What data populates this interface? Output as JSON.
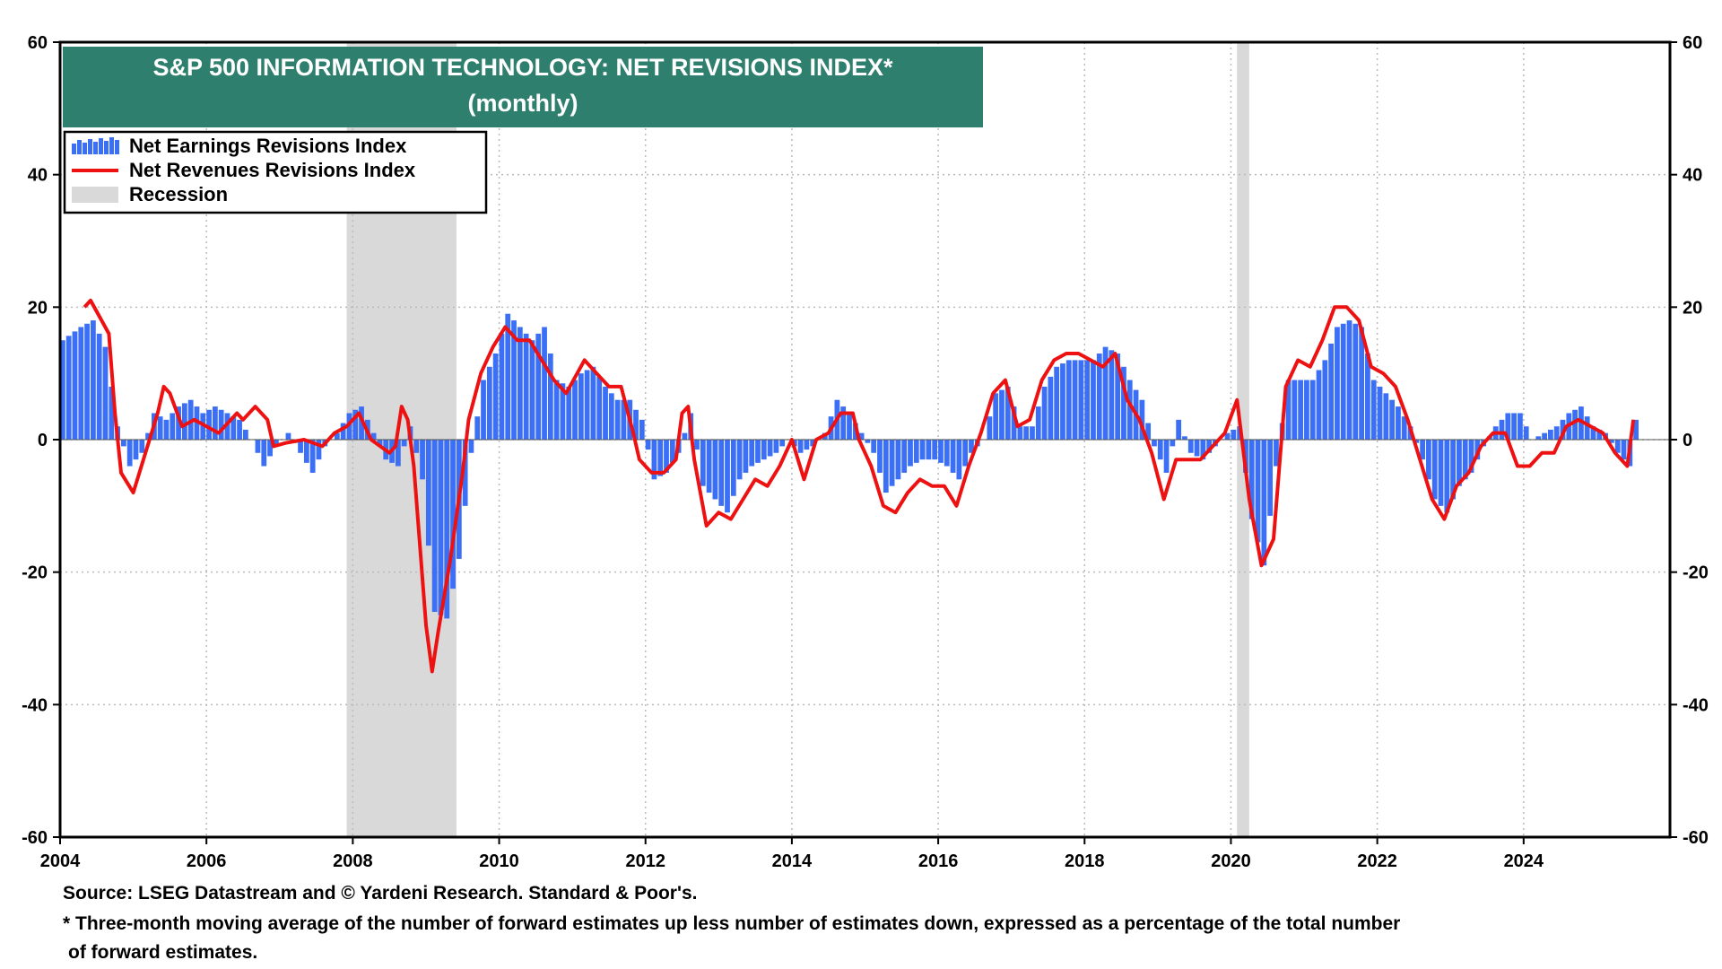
{
  "chart_data": {
    "type": "bar",
    "title": "S&P 500 INFORMATION TECHNOLOGY: NET REVISIONS INDEX*",
    "subtitle": "(monthly)",
    "ylim": [
      -60,
      60
    ],
    "y_ticks": [
      "60",
      "40",
      "20",
      "0",
      "-20",
      "-40",
      "-60"
    ],
    "x_ticks": [
      "2004",
      "2006",
      "2008",
      "2010",
      "2012",
      "2014",
      "2016",
      "2018",
      "2020",
      "2022",
      "2024"
    ],
    "xlim": [
      2004.0,
      2026.0
    ],
    "grid": true,
    "legend_position": "top-left",
    "legend": [
      {
        "label": "Net Earnings Revisions Index",
        "kind": "bar"
      },
      {
        "label": "Net Revenues Revisions Index",
        "kind": "line"
      },
      {
        "label": "Recession",
        "kind": "band"
      }
    ],
    "recessions": [
      {
        "start": "2007-12",
        "end": "2009-06"
      },
      {
        "start": "2020-02",
        "end": "2020-04"
      }
    ],
    "series": [
      {
        "name": "Net Earnings Revisions Index",
        "kind": "bar",
        "color": "#3b6ff5",
        "points": [
          [
            "2004-01",
            15
          ],
          [
            "2004-04",
            17
          ],
          [
            "2004-06",
            18
          ],
          [
            "2004-08",
            14
          ],
          [
            "2004-10",
            2
          ],
          [
            "2004-12",
            -4
          ],
          [
            "2005-02",
            -2
          ],
          [
            "2005-04",
            4
          ],
          [
            "2005-06",
            3
          ],
          [
            "2005-08",
            5
          ],
          [
            "2005-10",
            6
          ],
          [
            "2005-12",
            4
          ],
          [
            "2006-02",
            5
          ],
          [
            "2006-04",
            4
          ],
          [
            "2006-06",
            3
          ],
          [
            "2006-08",
            0
          ],
          [
            "2006-10",
            -4
          ],
          [
            "2006-12",
            -1
          ],
          [
            "2007-02",
            1
          ],
          [
            "2007-04",
            -2
          ],
          [
            "2007-06",
            -5
          ],
          [
            "2007-08",
            -1
          ],
          [
            "2007-10",
            1
          ],
          [
            "2007-12",
            4
          ],
          [
            "2008-02",
            5
          ],
          [
            "2008-04",
            1
          ],
          [
            "2008-06",
            -3
          ],
          [
            "2008-08",
            -4
          ],
          [
            "2008-10",
            2
          ],
          [
            "2008-12",
            -6
          ],
          [
            "2009-02",
            -26
          ],
          [
            "2009-04",
            -27
          ],
          [
            "2009-06",
            -18
          ],
          [
            "2009-08",
            -2
          ],
          [
            "2009-10",
            9
          ],
          [
            "2009-12",
            13
          ],
          [
            "2010-02",
            19
          ],
          [
            "2010-04",
            17
          ],
          [
            "2010-06",
            15
          ],
          [
            "2010-08",
            17
          ],
          [
            "2010-10",
            9
          ],
          [
            "2010-12",
            8
          ],
          [
            "2011-02",
            10
          ],
          [
            "2011-04",
            11
          ],
          [
            "2011-06",
            8
          ],
          [
            "2011-08",
            6
          ],
          [
            "2011-10",
            6
          ],
          [
            "2011-12",
            3
          ],
          [
            "2012-02",
            -6
          ],
          [
            "2012-04",
            -5
          ],
          [
            "2012-06",
            -2
          ],
          [
            "2012-08",
            4
          ],
          [
            "2012-10",
            -7
          ],
          [
            "2012-12",
            -9
          ],
          [
            "2013-02",
            -11
          ],
          [
            "2013-04",
            -6
          ],
          [
            "2013-06",
            -4
          ],
          [
            "2013-08",
            -3
          ],
          [
            "2013-10",
            -2
          ],
          [
            "2013-12",
            0
          ],
          [
            "2014-02",
            -2
          ],
          [
            "2014-04",
            -1
          ],
          [
            "2014-06",
            1
          ],
          [
            "2014-08",
            6
          ],
          [
            "2014-10",
            4
          ],
          [
            "2014-12",
            1
          ],
          [
            "2015-02",
            -2
          ],
          [
            "2015-04",
            -8
          ],
          [
            "2015-06",
            -6
          ],
          [
            "2015-08",
            -4
          ],
          [
            "2015-10",
            -3
          ],
          [
            "2015-12",
            -3
          ],
          [
            "2016-02",
            -4
          ],
          [
            "2016-04",
            -6
          ],
          [
            "2016-06",
            -2
          ],
          [
            "2016-08",
            0
          ],
          [
            "2016-10",
            7
          ],
          [
            "2016-12",
            8
          ],
          [
            "2017-02",
            2
          ],
          [
            "2017-04",
            2
          ],
          [
            "2017-06",
            8
          ],
          [
            "2017-08",
            11
          ],
          [
            "2017-10",
            12
          ],
          [
            "2017-12",
            12
          ],
          [
            "2018-02",
            12
          ],
          [
            "2018-04",
            14
          ],
          [
            "2018-06",
            13
          ],
          [
            "2018-08",
            9
          ],
          [
            "2018-10",
            6
          ],
          [
            "2018-12",
            -1
          ],
          [
            "2019-02",
            -5
          ],
          [
            "2019-04",
            3
          ],
          [
            "2019-06",
            -2
          ],
          [
            "2019-08",
            -3
          ],
          [
            "2019-10",
            -1
          ],
          [
            "2019-12",
            1
          ],
          [
            "2020-02",
            2
          ],
          [
            "2020-04",
            -12
          ],
          [
            "2020-06",
            -19
          ],
          [
            "2020-08",
            -4
          ],
          [
            "2020-10",
            9
          ],
          [
            "2020-12",
            9
          ],
          [
            "2021-02",
            9
          ],
          [
            "2021-04",
            12
          ],
          [
            "2021-06",
            17
          ],
          [
            "2021-08",
            18
          ],
          [
            "2021-10",
            17
          ],
          [
            "2021-12",
            9
          ],
          [
            "2022-02",
            7
          ],
          [
            "2022-04",
            5
          ],
          [
            "2022-06",
            2
          ],
          [
            "2022-08",
            -3
          ],
          [
            "2022-10",
            -9
          ],
          [
            "2022-12",
            -11
          ],
          [
            "2023-02",
            -7
          ],
          [
            "2023-04",
            -5
          ],
          [
            "2023-06",
            -1
          ],
          [
            "2023-08",
            2
          ],
          [
            "2023-10",
            4
          ],
          [
            "2023-12",
            4
          ],
          [
            "2024-02",
            0
          ],
          [
            "2024-04",
            1
          ],
          [
            "2024-06",
            2
          ],
          [
            "2024-08",
            4
          ],
          [
            "2024-10",
            5
          ],
          [
            "2024-12",
            2
          ],
          [
            "2025-02",
            1
          ],
          [
            "2025-04",
            -2
          ],
          [
            "2025-06",
            -4
          ],
          [
            "2025-07",
            3
          ]
        ]
      },
      {
        "name": "Net Revenues Revisions Index",
        "kind": "line",
        "color": "#ee1111",
        "points": [
          [
            "2004-05",
            20
          ],
          [
            "2004-06",
            21
          ],
          [
            "2004-09",
            16
          ],
          [
            "2004-10",
            4
          ],
          [
            "2004-11",
            -5
          ],
          [
            "2005-01",
            -8
          ],
          [
            "2005-02",
            -5
          ],
          [
            "2005-05",
            4
          ],
          [
            "2005-06",
            8
          ],
          [
            "2005-07",
            7
          ],
          [
            "2005-09",
            2
          ],
          [
            "2005-11",
            3
          ],
          [
            "2006-01",
            2
          ],
          [
            "2006-03",
            1
          ],
          [
            "2006-06",
            4
          ],
          [
            "2006-07",
            3
          ],
          [
            "2006-09",
            5
          ],
          [
            "2006-11",
            3
          ],
          [
            "2006-12",
            -1
          ],
          [
            "2007-02",
            -0.5
          ],
          [
            "2007-05",
            0
          ],
          [
            "2007-08",
            -1
          ],
          [
            "2007-10",
            1
          ],
          [
            "2007-12",
            2
          ],
          [
            "2008-02",
            4
          ],
          [
            "2008-04",
            0
          ],
          [
            "2008-07",
            -2
          ],
          [
            "2008-08",
            -1
          ],
          [
            "2008-09",
            5
          ],
          [
            "2008-10",
            3
          ],
          [
            "2008-11",
            -4
          ],
          [
            "2009-01",
            -28
          ],
          [
            "2009-02",
            -35
          ],
          [
            "2009-03",
            -29
          ],
          [
            "2009-05",
            -18
          ],
          [
            "2009-07",
            -5
          ],
          [
            "2009-08",
            3
          ],
          [
            "2009-10",
            10
          ],
          [
            "2009-12",
            14
          ],
          [
            "2010-02",
            17
          ],
          [
            "2010-04",
            15
          ],
          [
            "2010-06",
            15
          ],
          [
            "2010-08",
            12
          ],
          [
            "2010-10",
            9
          ],
          [
            "2010-12",
            7
          ],
          [
            "2011-03",
            12
          ],
          [
            "2011-05",
            10
          ],
          [
            "2011-07",
            8
          ],
          [
            "2011-09",
            8
          ],
          [
            "2011-11",
            1
          ],
          [
            "2011-12",
            -3
          ],
          [
            "2012-02",
            -5
          ],
          [
            "2012-04",
            -5
          ],
          [
            "2012-06",
            -3
          ],
          [
            "2012-07",
            4
          ],
          [
            "2012-08",
            5
          ],
          [
            "2012-09",
            -3
          ],
          [
            "2012-11",
            -13
          ],
          [
            "2013-01",
            -11
          ],
          [
            "2013-03",
            -12
          ],
          [
            "2013-05",
            -9
          ],
          [
            "2013-07",
            -6
          ],
          [
            "2013-09",
            -7
          ],
          [
            "2013-11",
            -4
          ],
          [
            "2014-01",
            0
          ],
          [
            "2014-03",
            -6
          ],
          [
            "2014-05",
            0
          ],
          [
            "2014-07",
            1
          ],
          [
            "2014-09",
            4
          ],
          [
            "2014-11",
            4
          ],
          [
            "2014-12",
            0
          ],
          [
            "2015-02",
            -4
          ],
          [
            "2015-04",
            -10
          ],
          [
            "2015-06",
            -11
          ],
          [
            "2015-08",
            -8
          ],
          [
            "2015-10",
            -6
          ],
          [
            "2015-12",
            -7
          ],
          [
            "2016-02",
            -7
          ],
          [
            "2016-04",
            -10
          ],
          [
            "2016-06",
            -4
          ],
          [
            "2016-08",
            1
          ],
          [
            "2016-10",
            7
          ],
          [
            "2016-12",
            9
          ],
          [
            "2017-02",
            2
          ],
          [
            "2017-04",
            3
          ],
          [
            "2017-06",
            9
          ],
          [
            "2017-08",
            12
          ],
          [
            "2017-10",
            13
          ],
          [
            "2017-12",
            13
          ],
          [
            "2018-02",
            12
          ],
          [
            "2018-04",
            11
          ],
          [
            "2018-06",
            13
          ],
          [
            "2018-08",
            6
          ],
          [
            "2018-10",
            3
          ],
          [
            "2018-12",
            -2
          ],
          [
            "2019-02",
            -9
          ],
          [
            "2019-04",
            -3
          ],
          [
            "2019-06",
            -3
          ],
          [
            "2019-08",
            -3
          ],
          [
            "2019-10",
            -1
          ],
          [
            "2019-12",
            1
          ],
          [
            "2020-02",
            6
          ],
          [
            "2020-04",
            -9
          ],
          [
            "2020-06",
            -19
          ],
          [
            "2020-08",
            -15
          ],
          [
            "2020-10",
            8
          ],
          [
            "2020-12",
            12
          ],
          [
            "2021-02",
            11
          ],
          [
            "2021-04",
            15
          ],
          [
            "2021-06",
            20
          ],
          [
            "2021-08",
            20
          ],
          [
            "2021-10",
            18
          ],
          [
            "2021-12",
            11
          ],
          [
            "2022-02",
            10
          ],
          [
            "2022-04",
            8
          ],
          [
            "2022-06",
            3
          ],
          [
            "2022-08",
            -3
          ],
          [
            "2022-10",
            -9
          ],
          [
            "2022-12",
            -12
          ],
          [
            "2023-02",
            -7
          ],
          [
            "2023-04",
            -5
          ],
          [
            "2023-06",
            -1
          ],
          [
            "2023-08",
            1
          ],
          [
            "2023-10",
            1
          ],
          [
            "2023-12",
            -4
          ],
          [
            "2024-02",
            -4
          ],
          [
            "2024-04",
            -2
          ],
          [
            "2024-06",
            -2
          ],
          [
            "2024-08",
            2
          ],
          [
            "2024-10",
            3
          ],
          [
            "2024-12",
            2
          ],
          [
            "2025-02",
            1
          ],
          [
            "2025-04",
            -2
          ],
          [
            "2025-06",
            -4
          ],
          [
            "2025-07",
            3
          ]
        ]
      }
    ]
  },
  "footer": {
    "source": "Source: LSEG Datastream and © Yardeni Research. Standard & Poor's.",
    "note_line1": "* Three-month moving average of the number of forward estimates up less number of estimates down, expressed as a percentage of the total number",
    "note_line2": "of forward estimates."
  },
  "colors": {
    "title_bg": "#2f7f6f",
    "bars": "#3b6ff5",
    "line": "#ee1111",
    "recession": "#d9d9d9"
  }
}
